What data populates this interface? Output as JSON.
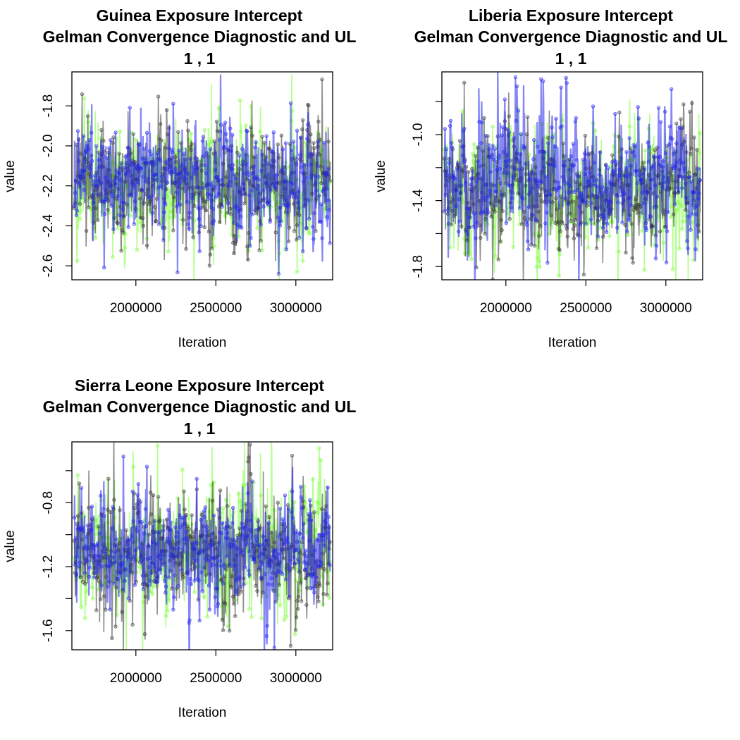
{
  "chart_data": [
    {
      "type": "line",
      "title": [
        "Guinea Exposure Intercept",
        "Gelman Convergence Diagnostic and UL",
        "1 ,  1"
      ],
      "xlabel": "Iteration",
      "ylabel": "value",
      "xlim": [
        1600000,
        3230000
      ],
      "ylim": [
        -2.67,
        -1.63
      ],
      "x_ticks": [
        2000000,
        2500000,
        3000000
      ],
      "x_tick_labels": [
        "2000000",
        "2500000",
        "3000000"
      ],
      "y_ticks": [
        -2.6,
        -2.4,
        -2.2,
        -2.0,
        -1.8
      ],
      "y_tick_labels": [
        "-2.6",
        "-2.4",
        "-2.2",
        "-2.0",
        "-1.8"
      ],
      "grid": false,
      "series": [
        {
          "color": "#77ff33",
          "center": -2.18,
          "spread": 0.13,
          "seed": 11
        },
        {
          "color": "#333333",
          "center": -2.19,
          "spread": 0.13,
          "seed": 23
        },
        {
          "color": "#2222ee",
          "center": -2.18,
          "spread": 0.13,
          "seed": 37
        }
      ]
    },
    {
      "type": "line",
      "title": [
        "Liberia Exposure Intercept",
        "Gelman Convergence Diagnostic and UL",
        "1 ,  1"
      ],
      "xlabel": "Iteration",
      "ylabel": "value",
      "xlim": [
        1600000,
        3230000
      ],
      "ylim": [
        -1.88,
        -0.62
      ],
      "x_ticks": [
        2000000,
        2500000,
        3000000
      ],
      "x_tick_labels": [
        "2000000",
        "2500000",
        "3000000"
      ],
      "y_ticks": [
        -1.8,
        -1.4,
        -1.0
      ],
      "y_tick_labels": [
        "-1.8",
        "-1.4",
        "-1.0"
      ],
      "y_minor_ticks": [
        -1.6,
        -1.2,
        -0.8
      ],
      "grid": false,
      "series": [
        {
          "color": "#77ff33",
          "center": -1.33,
          "spread": 0.17,
          "seed": 41
        },
        {
          "color": "#333333",
          "center": -1.35,
          "spread": 0.17,
          "seed": 53
        },
        {
          "color": "#2222ee",
          "center": -1.32,
          "spread": 0.17,
          "seed": 67
        }
      ]
    },
    {
      "type": "line",
      "title": [
        "Sierra Leone Exposure Intercept",
        "Gelman Convergence Diagnostic and UL",
        "1 ,  1"
      ],
      "xlabel": "Iteration",
      "ylabel": "value",
      "xlim": [
        1600000,
        3230000
      ],
      "ylim": [
        -1.72,
        -0.42
      ],
      "x_ticks": [
        2000000,
        2500000,
        3000000
      ],
      "x_tick_labels": [
        "2000000",
        "2500000",
        "3000000"
      ],
      "y_ticks": [
        -1.6,
        -1.2,
        -0.8
      ],
      "y_tick_labels": [
        "-1.6",
        "-1.2",
        "-0.8"
      ],
      "y_minor_ticks": [
        -1.4,
        -1.0,
        -0.6
      ],
      "grid": false,
      "series": [
        {
          "color": "#77ff33",
          "center": -1.1,
          "spread": 0.17,
          "seed": 71
        },
        {
          "color": "#333333",
          "center": -1.12,
          "spread": 0.17,
          "seed": 83
        },
        {
          "color": "#2222ee",
          "center": -1.1,
          "spread": 0.17,
          "seed": 97
        }
      ]
    }
  ]
}
